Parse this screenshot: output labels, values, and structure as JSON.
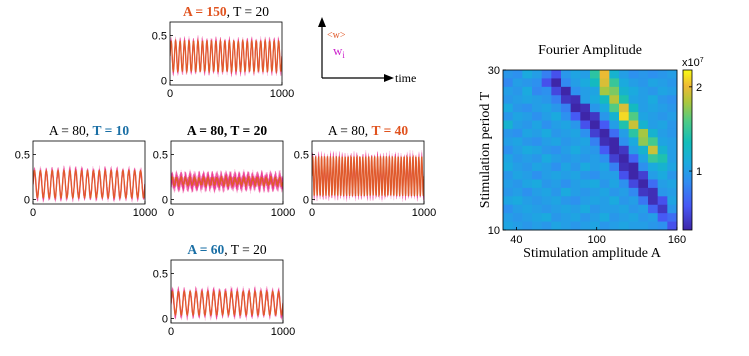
{
  "panels": {
    "top": {
      "pre": "",
      "a_part": "A = 150",
      "sep": ", ",
      "t_part": "T = 20",
      "highlight": "A",
      "base_level": 0.27,
      "amp": 0.17,
      "noise": 0.025,
      "cycles": 25
    },
    "left": {
      "pre": "",
      "a_part": "A = 80",
      "sep": ", ",
      "t_part": "T = 10",
      "highlight": "T",
      "base_level": 0.17,
      "amp": 0.15,
      "noise": 0.03,
      "cycles": 19
    },
    "center": {
      "pre": "",
      "a_part": "A = 80",
      "sep": ", ",
      "t_part": "T = 20",
      "highlight": "both-bold",
      "base_level": 0.2,
      "amp": 0.04,
      "noise": 0.09,
      "cycles": 25
    },
    "right": {
      "pre": "",
      "a_part": "A = 80",
      "sep": ", ",
      "t_part": "T = 40",
      "highlight": "T",
      "base_level": 0.26,
      "amp": 0.22,
      "noise": 0.02,
      "cycles": 38
    },
    "bottom": {
      "pre": "",
      "a_part": "A = 60",
      "sep": ", ",
      "t_part": "T = 20",
      "highlight": "A",
      "base_level": 0.17,
      "amp": 0.13,
      "noise": 0.04,
      "cycles": 19
    }
  },
  "panel_axes": {
    "y_ticks": [
      "0",
      "0.5"
    ],
    "x_tick_left": "0",
    "x_tick_right": "1000",
    "ylim": [
      -0.05,
      0.65
    ],
    "xlim": [
      0,
      1000
    ]
  },
  "legend": {
    "mean_label": "<w>",
    "individual_label": "w",
    "individual_sub": "i",
    "time_label": "time"
  },
  "colors": {
    "mean_line": "#e05a2b",
    "individual": "#ec2d8c",
    "orange_text": "#e0531f",
    "blue_text": "#1a6fa5",
    "legend_mean": "#e05a2b",
    "legend_individual": "#cc22cc"
  },
  "chart_data": {
    "type": "heatmap",
    "title": "Fourier Amplitude",
    "xlabel": "Stimulation amplitude A",
    "ylabel": "Stimulation period T",
    "x_ticks": [
      "40",
      "100",
      "160"
    ],
    "y_ticks": [
      "10",
      "30"
    ],
    "xlim": [
      30,
      160
    ],
    "ylim": [
      10,
      30
    ],
    "colorbar_ticks": [
      "1",
      "2"
    ],
    "colorbar_exponent": "x10",
    "colorbar_exponent_power": "7",
    "colorbar_range": [
      0.3,
      2.2
    ],
    "rows_top_to_bottom": [
      [
        0.95,
        0.9,
        1.1,
        1.0,
        0.8,
        0.55,
        0.95,
        1.05,
        1.0,
        1.45,
        2.0,
        1.2,
        1.0,
        0.9,
        0.95,
        0.9,
        0.95,
        1.0
      ],
      [
        0.85,
        1.0,
        0.95,
        0.9,
        0.55,
        0.3,
        0.85,
        1.0,
        1.1,
        1.3,
        1.95,
        1.5,
        1.1,
        1.0,
        0.95,
        1.05,
        1.0,
        0.95
      ],
      [
        1.0,
        0.95,
        1.1,
        0.85,
        0.9,
        0.5,
        0.3,
        0.9,
        1.0,
        1.05,
        1.8,
        1.7,
        1.2,
        1.1,
        1.0,
        0.95,
        1.05,
        1.0
      ],
      [
        0.95,
        1.0,
        1.05,
        1.0,
        0.95,
        0.8,
        0.4,
        0.35,
        1.0,
        1.1,
        1.3,
        1.85,
        1.4,
        1.05,
        1.0,
        1.1,
        0.95,
        0.9
      ],
      [
        1.1,
        0.95,
        0.9,
        1.0,
        1.05,
        0.95,
        0.8,
        0.3,
        0.35,
        0.95,
        1.1,
        1.6,
        1.95,
        1.3,
        1.0,
        1.05,
        1.0,
        0.95
      ],
      [
        0.95,
        1.05,
        1.0,
        0.9,
        1.0,
        1.1,
        0.9,
        0.6,
        0.3,
        0.4,
        0.95,
        1.2,
        2.1,
        1.6,
        1.05,
        1.0,
        0.95,
        1.0
      ],
      [
        1.2,
        1.0,
        0.95,
        1.05,
        0.9,
        1.0,
        1.05,
        0.95,
        0.55,
        0.3,
        0.6,
        1.0,
        1.4,
        1.9,
        1.2,
        1.0,
        1.05,
        0.95
      ],
      [
        0.95,
        0.9,
        1.05,
        1.0,
        1.1,
        0.95,
        1.0,
        1.05,
        0.9,
        0.45,
        0.3,
        0.7,
        1.0,
        1.45,
        1.8,
        1.2,
        1.0,
        0.95
      ],
      [
        1.0,
        1.05,
        0.95,
        0.9,
        1.0,
        1.05,
        0.95,
        1.0,
        1.05,
        0.8,
        0.35,
        0.3,
        0.9,
        1.1,
        1.75,
        1.55,
        1.05,
        1.0
      ],
      [
        0.9,
        1.0,
        1.1,
        1.05,
        0.95,
        0.9,
        1.0,
        1.1,
        1.0,
        0.95,
        0.6,
        0.3,
        0.4,
        1.0,
        1.2,
        1.9,
        1.2,
        1.0
      ],
      [
        1.05,
        0.95,
        1.0,
        0.95,
        1.1,
        1.0,
        0.95,
        1.0,
        0.95,
        1.0,
        0.9,
        0.45,
        0.3,
        0.65,
        1.05,
        1.5,
        1.4,
        1.0
      ],
      [
        1.1,
        1.0,
        0.95,
        1.05,
        1.0,
        0.9,
        1.05,
        0.95,
        1.1,
        1.0,
        1.05,
        0.8,
        0.35,
        0.3,
        0.9,
        1.1,
        1.2,
        1.05
      ],
      [
        0.95,
        1.05,
        1.0,
        0.9,
        1.0,
        1.05,
        1.0,
        1.05,
        0.95,
        0.9,
        1.0,
        1.0,
        0.55,
        0.3,
        0.45,
        1.0,
        1.1,
        0.95
      ],
      [
        1.0,
        0.95,
        1.05,
        1.1,
        0.95,
        1.0,
        0.9,
        1.0,
        1.05,
        1.1,
        0.95,
        1.05,
        0.9,
        0.5,
        0.3,
        0.7,
        1.0,
        1.05
      ],
      [
        0.95,
        1.0,
        0.9,
        1.0,
        1.05,
        0.95,
        1.1,
        1.0,
        0.95,
        1.0,
        1.05,
        0.95,
        1.0,
        0.85,
        0.4,
        0.35,
        0.95,
        1.0
      ],
      [
        1.05,
        1.1,
        1.0,
        0.95,
        1.0,
        1.05,
        0.95,
        0.9,
        1.0,
        1.05,
        1.0,
        1.1,
        0.95,
        1.0,
        0.75,
        0.35,
        0.55,
        1.05
      ],
      [
        0.9,
        1.0,
        1.05,
        1.0,
        0.95,
        1.0,
        1.05,
        1.0,
        1.1,
        0.95,
        1.0,
        1.0,
        1.05,
        0.95,
        1.0,
        0.65,
        0.4,
        0.95
      ],
      [
        1.0,
        0.95,
        1.0,
        1.05,
        1.1,
        0.95,
        1.0,
        1.05,
        0.95,
        1.0,
        1.1,
        0.95,
        1.0,
        1.05,
        0.95,
        1.0,
        0.6,
        0.7
      ],
      [
        1.05,
        1.0,
        0.95,
        1.0,
        0.95,
        1.05,
        1.0,
        0.95,
        1.0,
        1.05,
        0.95,
        1.0,
        1.05,
        1.0,
        1.0,
        0.95,
        0.9,
        0.55
      ]
    ]
  }
}
